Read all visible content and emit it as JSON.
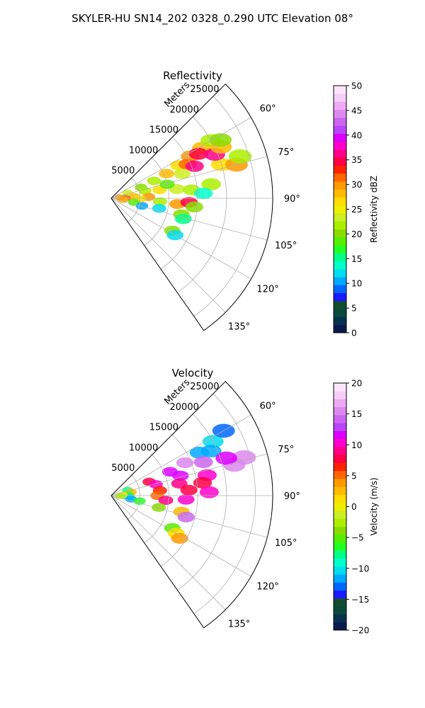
{
  "suptitle": "SKYLER-HU  SN14_202  0328_0.290 UTC Elevation 08°",
  "chart_data": [
    {
      "type": "heatmap",
      "projection": "polar-sector",
      "title": "Reflectivity",
      "range_axis_label": "Meters",
      "range_ticks": [
        "5000",
        "10000",
        "15000",
        "20000",
        "25000"
      ],
      "range_tick_values": [
        5000,
        10000,
        15000,
        20000,
        25000
      ],
      "range_max": 28000,
      "azimuth_range_deg": [
        45,
        145
      ],
      "azimuth_ticks": [
        "60°",
        "75°",
        "90°",
        "105°",
        "120°",
        "135°"
      ],
      "azimuth_tick_values": [
        60,
        75,
        90,
        105,
        120,
        135
      ],
      "colorbar": {
        "label": "Reflectivity dBZ",
        "range": [
          0,
          50
        ],
        "ticks": [
          "0",
          "5",
          "10",
          "15",
          "20",
          "25",
          "30",
          "35",
          "40",
          "45",
          "50"
        ],
        "tick_values": [
          0,
          5,
          10,
          15,
          20,
          25,
          30,
          35,
          40,
          45,
          50
        ],
        "colors": [
          "#0b1a4d",
          "#08314f",
          "#0a4a3a",
          "#114d2e",
          "#1a1aff",
          "#0066ff",
          "#00aaff",
          "#00ddee",
          "#00ffcc",
          "#00ff88",
          "#22ff22",
          "#55ee00",
          "#88dd00",
          "#aaee00",
          "#ccee22",
          "#eeee00",
          "#ffdd00",
          "#ffbb00",
          "#ff9900",
          "#ff6600",
          "#ff2200",
          "#ff0044",
          "#ff0088",
          "#ff00cc",
          "#dd00ff",
          "#bb44ff",
          "#cc66ee",
          "#dd88ee",
          "#eeaaf5",
          "#f6ccf8",
          "#fbe6fb"
        ]
      },
      "cells": [
        {
          "az": 72,
          "r": 3000,
          "v": 24
        },
        {
          "az": 70,
          "r": 5500,
          "v": 20
        },
        {
          "az": 68,
          "r": 8000,
          "v": 22
        },
        {
          "az": 66,
          "r": 10500,
          "v": 28
        },
        {
          "az": 64,
          "r": 13000,
          "v": 26
        },
        {
          "az": 62,
          "r": 15500,
          "v": 30
        },
        {
          "az": 61,
          "r": 18000,
          "v": 28
        },
        {
          "az": 60,
          "r": 20000,
          "v": 22
        },
        {
          "az": 63,
          "r": 17000,
          "v": 34
        },
        {
          "az": 66,
          "r": 14500,
          "v": 32
        },
        {
          "az": 69,
          "r": 15500,
          "v": 37
        },
        {
          "az": 71,
          "r": 13000,
          "v": 24
        },
        {
          "az": 73,
          "r": 20000,
          "v": 26
        },
        {
          "az": 75,
          "r": 22500,
          "v": 30
        },
        {
          "az": 72,
          "r": 23500,
          "v": 22
        },
        {
          "az": 67,
          "r": 19500,
          "v": 36
        },
        {
          "az": 65,
          "r": 21000,
          "v": 28
        },
        {
          "az": 62,
          "r": 21500,
          "v": 20
        },
        {
          "az": 78,
          "r": 6000,
          "v": 22
        },
        {
          "az": 80,
          "r": 8500,
          "v": 26
        },
        {
          "az": 82,
          "r": 11500,
          "v": 24
        },
        {
          "az": 84,
          "r": 14000,
          "v": 22
        },
        {
          "az": 86,
          "r": 4000,
          "v": 28
        },
        {
          "az": 88,
          "r": 6500,
          "v": 30
        },
        {
          "az": 90,
          "r": 2500,
          "v": 32
        },
        {
          "az": 92,
          "r": 5000,
          "v": 26
        },
        {
          "az": 94,
          "r": 8500,
          "v": 22
        },
        {
          "az": 95,
          "r": 11500,
          "v": 30
        },
        {
          "az": 93,
          "r": 13500,
          "v": 34
        },
        {
          "az": 96,
          "r": 14500,
          "v": 20
        },
        {
          "az": 100,
          "r": 4000,
          "v": 18
        },
        {
          "az": 104,
          "r": 5500,
          "v": 10
        },
        {
          "az": 102,
          "r": 8500,
          "v": 12
        },
        {
          "az": 103,
          "r": 12500,
          "v": 20
        },
        {
          "az": 106,
          "r": 13000,
          "v": 16
        },
        {
          "az": 118,
          "r": 12000,
          "v": 20
        },
        {
          "az": 120,
          "r": 12800,
          "v": 12
        },
        {
          "az": 98,
          "r": 2000,
          "v": 28
        },
        {
          "az": 85,
          "r": 1500,
          "v": 30
        },
        {
          "az": 76,
          "r": 10000,
          "v": 18
        },
        {
          "az": 82,
          "r": 17500,
          "v": 22
        },
        {
          "az": 87,
          "r": 16000,
          "v": 14
        }
      ]
    },
    {
      "type": "heatmap",
      "projection": "polar-sector",
      "title": "Velocity",
      "range_axis_label": "Meters",
      "range_ticks": [
        "5000",
        "10000",
        "15000",
        "20000",
        "25000"
      ],
      "range_tick_values": [
        5000,
        10000,
        15000,
        20000,
        25000
      ],
      "range_max": 28000,
      "azimuth_range_deg": [
        45,
        145
      ],
      "azimuth_ticks": [
        "60°",
        "75°",
        "90°",
        "105°",
        "120°",
        "135°"
      ],
      "azimuth_tick_values": [
        60,
        75,
        90,
        105,
        120,
        135
      ],
      "colorbar": {
        "label": "Velocity (m/s)",
        "range": [
          -20,
          20
        ],
        "ticks": [
          "−20",
          "−15",
          "−10",
          "−5",
          "0",
          "5",
          "10",
          "15",
          "20"
        ],
        "tick_values": [
          -20,
          -15,
          -10,
          -5,
          0,
          5,
          10,
          15,
          20
        ],
        "colors": [
          "#0b1a4d",
          "#08314f",
          "#0a4a3a",
          "#114d2e",
          "#1a1aff",
          "#0066ff",
          "#00aaff",
          "#00ddee",
          "#00ffcc",
          "#00ff88",
          "#22ff22",
          "#55ee00",
          "#88dd00",
          "#aaee00",
          "#ccee22",
          "#eeee00",
          "#ffdd00",
          "#ffbb00",
          "#ff9900",
          "#ff6600",
          "#ff2200",
          "#ff0044",
          "#ff0088",
          "#ff00cc",
          "#dd00ff",
          "#bb44ff",
          "#cc66ee",
          "#dd88ee",
          "#eeaaf5",
          "#f6ccf8",
          "#fbe6fb"
        ]
      },
      "cells": [
        {
          "az": 72,
          "r": 3000,
          "v": -8
        },
        {
          "az": 80,
          "r": 3500,
          "v": 2
        },
        {
          "az": 88,
          "r": 3000,
          "v": -6
        },
        {
          "az": 95,
          "r": 3000,
          "v": -10
        },
        {
          "az": 100,
          "r": 3500,
          "v": -12
        },
        {
          "az": 70,
          "r": 7000,
          "v": 8
        },
        {
          "az": 76,
          "r": 8000,
          "v": 10
        },
        {
          "az": 84,
          "r": 8500,
          "v": 7
        },
        {
          "az": 90,
          "r": 8000,
          "v": 5
        },
        {
          "az": 95,
          "r": 9500,
          "v": 9
        },
        {
          "az": 68,
          "r": 11000,
          "v": 12
        },
        {
          "az": 66,
          "r": 14000,
          "v": 15
        },
        {
          "az": 74,
          "r": 12500,
          "v": 11
        },
        {
          "az": 80,
          "r": 12000,
          "v": 9
        },
        {
          "az": 86,
          "r": 13500,
          "v": 8
        },
        {
          "az": 93,
          "r": 13000,
          "v": 10
        },
        {
          "az": 64,
          "r": 17000,
          "v": -12
        },
        {
          "az": 62,
          "r": 20000,
          "v": -10
        },
        {
          "az": 60,
          "r": 22500,
          "v": -13
        },
        {
          "az": 66,
          "r": 19000,
          "v": -11
        },
        {
          "az": 76,
          "r": 22000,
          "v": 16
        },
        {
          "az": 74,
          "r": 24000,
          "v": 15
        },
        {
          "az": 72,
          "r": 21000,
          "v": 12
        },
        {
          "az": 70,
          "r": 17000,
          "v": 14
        },
        {
          "az": 78,
          "r": 17000,
          "v": 10
        },
        {
          "az": 82,
          "r": 16000,
          "v": 8
        },
        {
          "az": 88,
          "r": 17000,
          "v": 10
        },
        {
          "az": 101,
          "r": 5000,
          "v": -6
        },
        {
          "az": 104,
          "r": 8500,
          "v": -4
        },
        {
          "az": 103,
          "r": 12500,
          "v": 2
        },
        {
          "az": 106,
          "r": 13500,
          "v": 14
        },
        {
          "az": 118,
          "r": 12000,
          "v": -5
        },
        {
          "az": 120,
          "r": 13000,
          "v": 1
        },
        {
          "az": 122,
          "r": 14000,
          "v": 4
        },
        {
          "az": 86,
          "r": 2000,
          "v": 0
        },
        {
          "az": 92,
          "r": 1500,
          "v": -2
        }
      ]
    }
  ]
}
